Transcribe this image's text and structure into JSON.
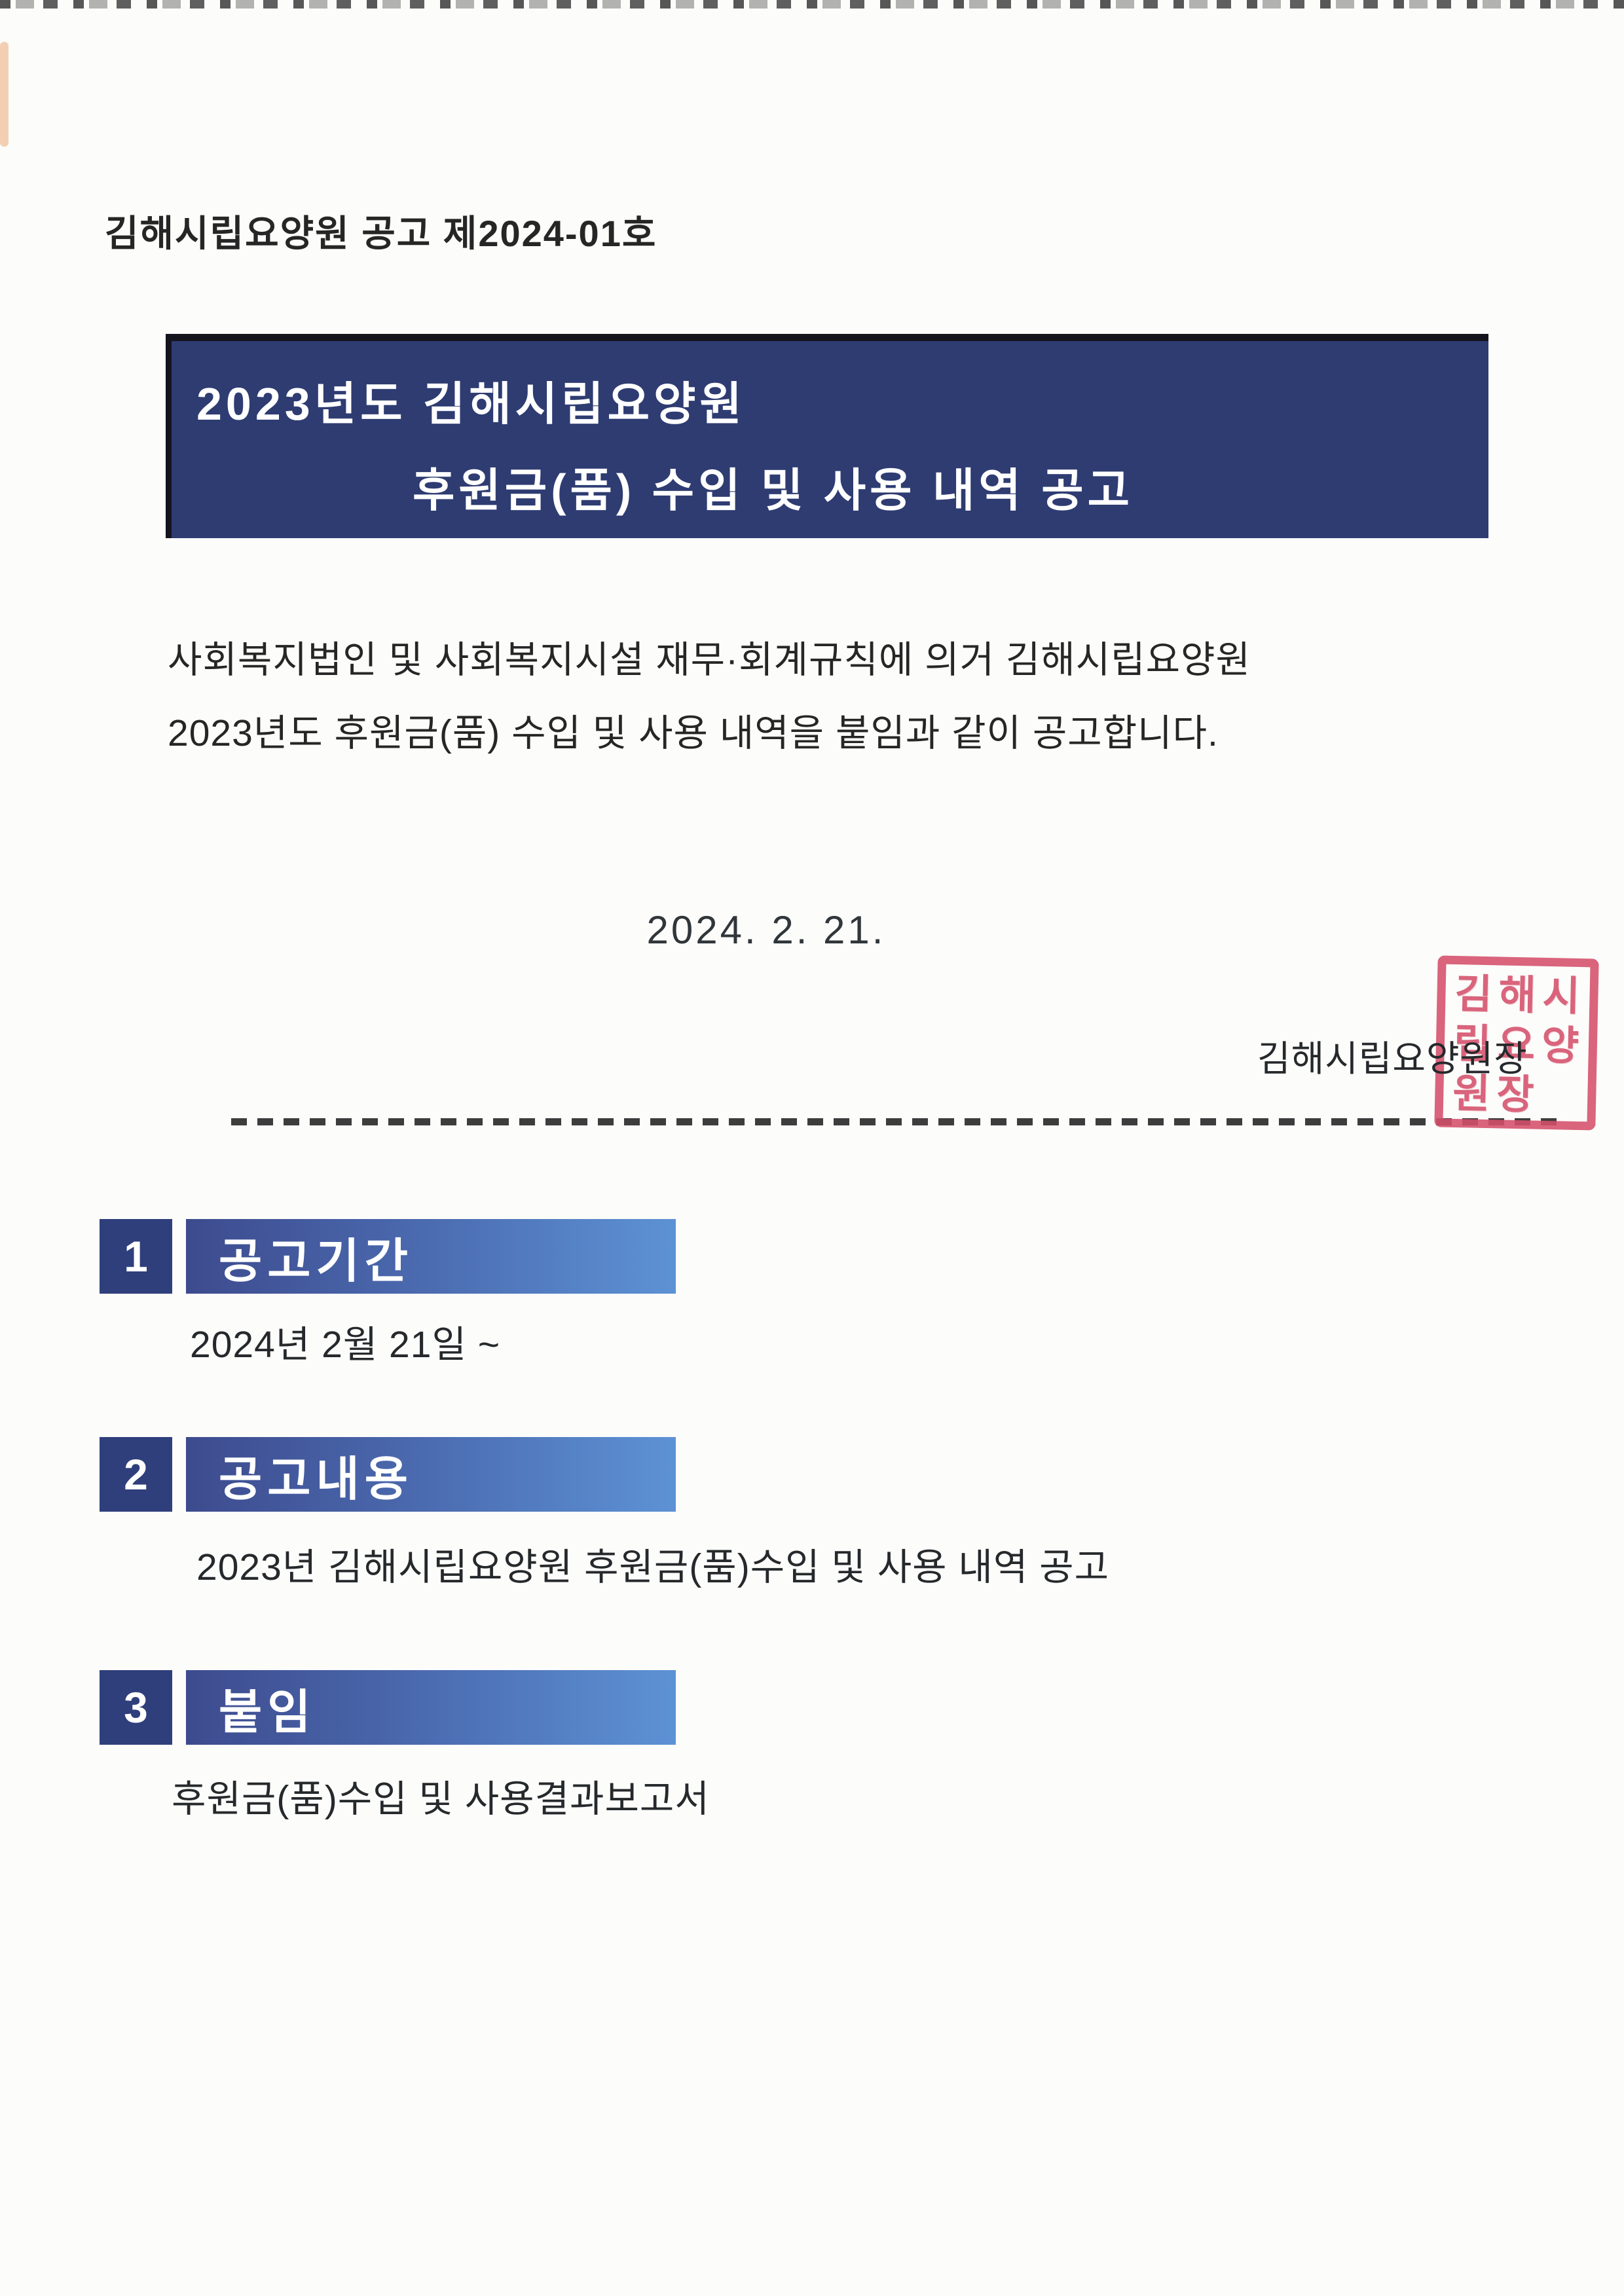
{
  "page": {
    "doc_number": "김해시립요양원 공고 제2024-01호",
    "banner": {
      "line1": "2023년도 김해시립요양원",
      "line2": "후원금(품) 수입 및 사용 내역 공고"
    },
    "intro": {
      "line1": "사회복지법인 및 사회복지시설 재무·회계규칙에 의거 김해시립요양원",
      "line2": "2023년도 후원금(품) 수입 및 사용 내역을 붙임과 같이 공고합니다."
    },
    "date": "2024.  2. 21.",
    "signer": "김해시립요양원장",
    "stamp": {
      "rows": [
        "김해시",
        "립요양",
        "원장"
      ]
    },
    "sections": [
      {
        "num": "1",
        "title": "공고기간",
        "body": "2024년 2월 21일 ~"
      },
      {
        "num": "2",
        "title": "공고내용",
        "body": "2023년 김해시립요양원 후원금(품)수입 및 사용 내역 공고"
      },
      {
        "num": "3",
        "title": "붙임",
        "body": "후원금(품)수입 및 사용결과보고서"
      }
    ],
    "colors": {
      "banner_navy": "#2e3c72",
      "number_box_navy": "#2f3f7c",
      "bar_gradient_left": "#3d4b8e",
      "bar_gradient_right": "#5d92d5",
      "stamp_red": "#d5506b",
      "body_text": "#26292c"
    }
  }
}
